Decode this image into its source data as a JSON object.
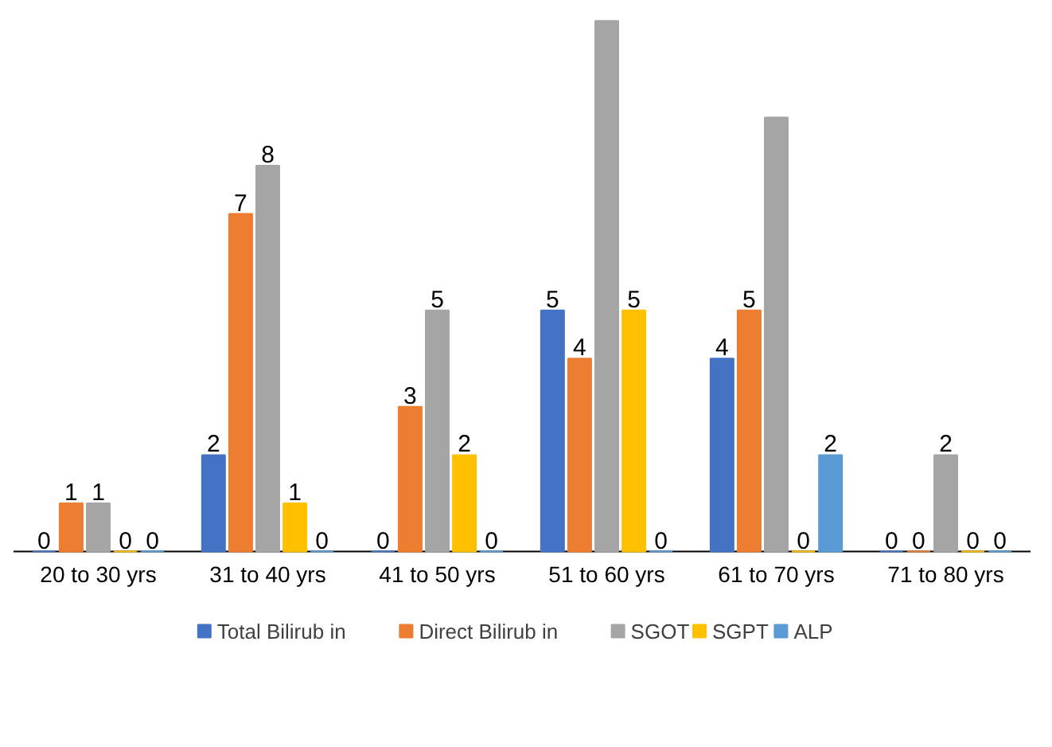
{
  "chart_data": {
    "type": "bar",
    "categories": [
      "20 to 30 yrs",
      "31 to 40 yrs",
      "41 to 50 yrs",
      "51 to 60 yrs",
      "61 to 70 yrs",
      "71 to 80 yrs"
    ],
    "series": [
      {
        "name": "Total Bilirub in",
        "color": "#4472c4",
        "values": [
          0,
          2,
          0,
          5,
          4,
          0
        ],
        "value_labels": [
          "0",
          "2",
          "0",
          "5",
          "4",
          "0"
        ]
      },
      {
        "name": "Direct Bilirub in",
        "color": "#ed7d31",
        "values": [
          1,
          7,
          3,
          4,
          5,
          0
        ],
        "value_labels": [
          "1",
          "7",
          "3",
          "4",
          "5",
          "0"
        ]
      },
      {
        "name": "SGOT",
        "color": "#a5a5a5",
        "values": [
          1,
          8,
          5,
          11,
          9,
          2
        ],
        "value_labels": [
          "1",
          "8",
          "5",
          null,
          null,
          "2"
        ]
      },
      {
        "name": "SGPT",
        "color": "#ffc000",
        "values": [
          0,
          1,
          2,
          5,
          0,
          0
        ],
        "value_labels": [
          "0",
          "1",
          "2",
          "5",
          "0",
          "0"
        ]
      },
      {
        "name": "ALP",
        "color": "#5b9bd5",
        "values": [
          0,
          0,
          0,
          0,
          2,
          0
        ],
        "value_labels": [
          "0",
          "0",
          "0",
          "0",
          "2",
          "0"
        ]
      }
    ],
    "legend": "bottom"
  }
}
